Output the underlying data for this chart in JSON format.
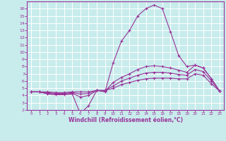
{
  "xlabel": "Windchill (Refroidissement éolien,°C)",
  "bg_color": "#c8ecec",
  "line_color": "#993399",
  "grid_color": "#ffffff",
  "xlim": [
    -0.5,
    23.5
  ],
  "ylim": [
    2,
    17
  ],
  "xticks": [
    0,
    1,
    2,
    3,
    4,
    5,
    6,
    7,
    8,
    9,
    10,
    11,
    12,
    13,
    14,
    15,
    16,
    17,
    18,
    19,
    20,
    21,
    22,
    23
  ],
  "yticks": [
    2,
    3,
    4,
    5,
    6,
    7,
    8,
    9,
    10,
    11,
    12,
    13,
    14,
    15,
    16
  ],
  "series": [
    {
      "x": [
        0,
        1,
        2,
        3,
        4,
        5,
        6,
        7,
        8,
        9,
        10,
        11,
        12,
        13,
        14,
        15,
        16,
        17,
        18,
        19,
        20,
        21,
        22,
        23
      ],
      "y": [
        4.5,
        4.5,
        4.2,
        4.1,
        4.1,
        4.2,
        1.5,
        2.6,
        4.7,
        4.5,
        8.5,
        11.5,
        13.0,
        15.0,
        16.0,
        16.5,
        16.0,
        12.8,
        9.5,
        8.0,
        8.2,
        7.8,
        6.3,
        4.6
      ]
    },
    {
      "x": [
        0,
        1,
        2,
        3,
        4,
        5,
        6,
        7,
        8,
        9,
        10,
        11,
        12,
        13,
        14,
        15,
        16,
        17,
        18,
        19,
        20,
        21,
        22,
        23
      ],
      "y": [
        4.5,
        4.5,
        4.3,
        4.2,
        4.2,
        4.3,
        3.8,
        4.0,
        4.7,
        4.6,
        5.8,
        6.5,
        7.0,
        7.6,
        8.0,
        8.1,
        8.0,
        7.8,
        7.5,
        7.2,
        8.2,
        7.8,
        6.3,
        4.6
      ]
    },
    {
      "x": [
        0,
        1,
        2,
        3,
        4,
        5,
        6,
        7,
        8,
        9,
        10,
        11,
        12,
        13,
        14,
        15,
        16,
        17,
        18,
        19,
        20,
        21,
        22,
        23
      ],
      "y": [
        4.5,
        4.5,
        4.4,
        4.3,
        4.3,
        4.4,
        4.2,
        4.3,
        4.7,
        4.7,
        5.3,
        6.0,
        6.4,
        6.8,
        7.1,
        7.2,
        7.2,
        7.1,
        6.9,
        6.8,
        7.6,
        7.3,
        6.0,
        4.6
      ]
    },
    {
      "x": [
        0,
        1,
        2,
        3,
        4,
        5,
        6,
        7,
        8,
        9,
        10,
        11,
        12,
        13,
        14,
        15,
        16,
        17,
        18,
        19,
        20,
        21,
        22,
        23
      ],
      "y": [
        4.5,
        4.5,
        4.5,
        4.4,
        4.4,
        4.5,
        4.5,
        4.5,
        4.7,
        4.7,
        5.0,
        5.5,
        5.8,
        6.1,
        6.3,
        6.4,
        6.4,
        6.4,
        6.3,
        6.3,
        7.0,
        6.8,
        5.6,
        4.6
      ]
    }
  ],
  "marker": "+"
}
